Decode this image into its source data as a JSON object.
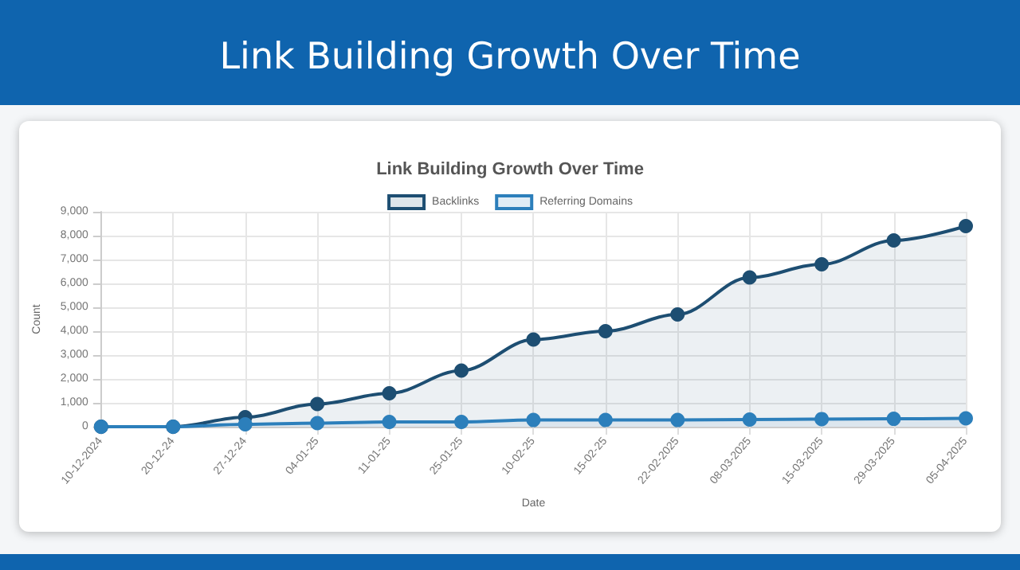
{
  "chart_data": {
    "type": "area",
    "title": "Link Building Growth Over Time",
    "subtitle": "Link Building Growth Over Time",
    "xlabel": "Date",
    "ylabel": "Count",
    "categories": [
      "10-12-2024",
      "20-12-24",
      "27-12-24",
      "04-01-25",
      "11-01-25",
      "25-01-25",
      "10-02-25",
      "15-02-25",
      "22-02-2025",
      "08-03-2025",
      "15-03-2025",
      "29-03-2025",
      "05-04-2025"
    ],
    "series": [
      {
        "name": "Backlinks",
        "color": "#1d4e72",
        "values": [
          0,
          0,
          400,
          950,
          1400,
          2350,
          3650,
          4000,
          4700,
          6250,
          6800,
          7800,
          8400
        ]
      },
      {
        "name": "Referring Domains",
        "color": "#2c7fbb",
        "values": [
          0,
          0,
          100,
          150,
          200,
          200,
          280,
          280,
          280,
          300,
          320,
          330,
          350
        ]
      }
    ],
    "ylim": [
      0,
      9000
    ],
    "yticks": [
      0,
      {
        "value": 1000,
        "label": "1,000"
      },
      {
        "value": 2000,
        "label": "2,000"
      },
      {
        "value": 3000,
        "label": "3,000"
      },
      {
        "value": 4000,
        "label": "4,000"
      },
      {
        "value": 5000,
        "label": "5,000"
      },
      {
        "value": 6000,
        "label": "6,000"
      },
      {
        "value": 7000,
        "label": "7,000"
      },
      {
        "value": 8000,
        "label": "8,000"
      },
      {
        "value": 9000,
        "label": "9,000"
      }
    ],
    "grid": true,
    "legend": "top",
    "marker": "circle",
    "line_style": "solid"
  }
}
